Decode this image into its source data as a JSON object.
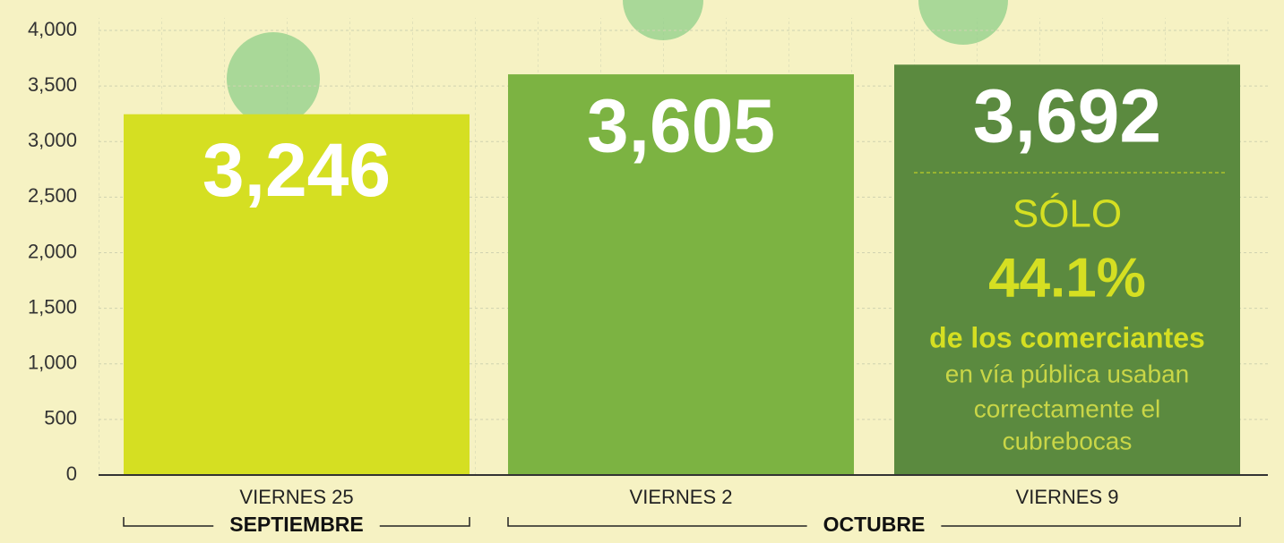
{
  "chart_data": {
    "type": "bar",
    "categories": [
      "VIERNES 25",
      "VIERNES 2",
      "VIERNES 9"
    ],
    "groups": [
      "SEPTIEMBRE",
      "OCTUBRE"
    ],
    "values": [
      3246,
      3605,
      3692
    ],
    "value_labels": [
      "3,246",
      "3,605",
      "3,692"
    ],
    "colors": [
      "#d5df22",
      "#7cb342",
      "#5b8a3f"
    ],
    "ylim": [
      0,
      4000
    ],
    "yticks": [
      0,
      500,
      {
        "value": 1000,
        "label": "1,000"
      },
      {
        "value": 1500,
        "label": "1,500"
      },
      {
        "value": 2000,
        "label": "2,000"
      },
      {
        "value": 2500,
        "label": "2,500"
      },
      {
        "value": 3000,
        "label": "3,000"
      },
      {
        "value": 3500,
        "label": "3,500"
      },
      {
        "value": 4000,
        "label": "4,000"
      }
    ],
    "grid": true,
    "annotation": [
      "SÓLO",
      "44.1%",
      "de los comerciantes",
      "en vía pública usaban",
      "correctamente el",
      "cubrebocas"
    ]
  }
}
